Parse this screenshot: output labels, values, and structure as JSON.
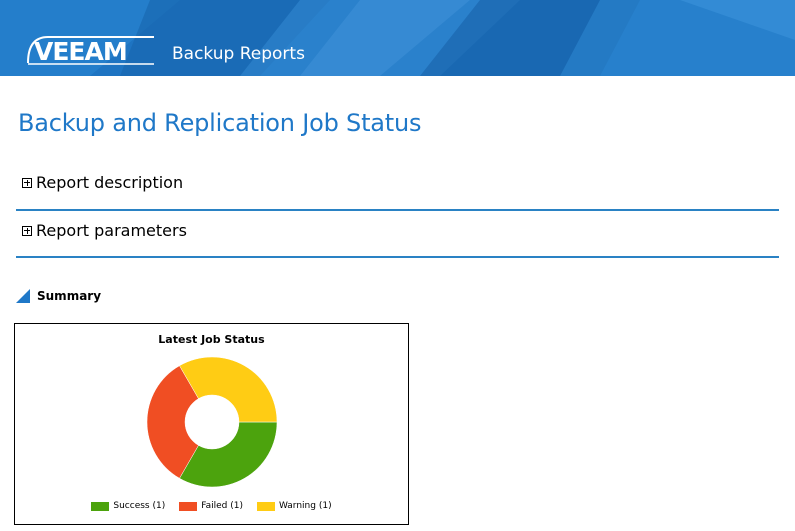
{
  "header": {
    "logo_text": "VEEAM",
    "product": "Backup Reports"
  },
  "page_title": "Backup and Replication Job Status",
  "sections": [
    {
      "label": "Report description"
    },
    {
      "label": "Report parameters"
    }
  ],
  "summary": {
    "label": "Summary"
  },
  "colors": {
    "brand_blue": "#1f78c8",
    "success": "#4ca30d",
    "failed": "#f04e23",
    "warning": "#ffcc14"
  },
  "chart_data": {
    "type": "pie",
    "title": "Latest Job Status",
    "categories": [
      "Success (1)",
      "Failed (1)",
      "Warning (1)"
    ],
    "values": [
      1,
      1,
      1
    ],
    "colors": [
      "#4ca30d",
      "#f04e23",
      "#ffcc14"
    ],
    "legend": "bottom"
  }
}
